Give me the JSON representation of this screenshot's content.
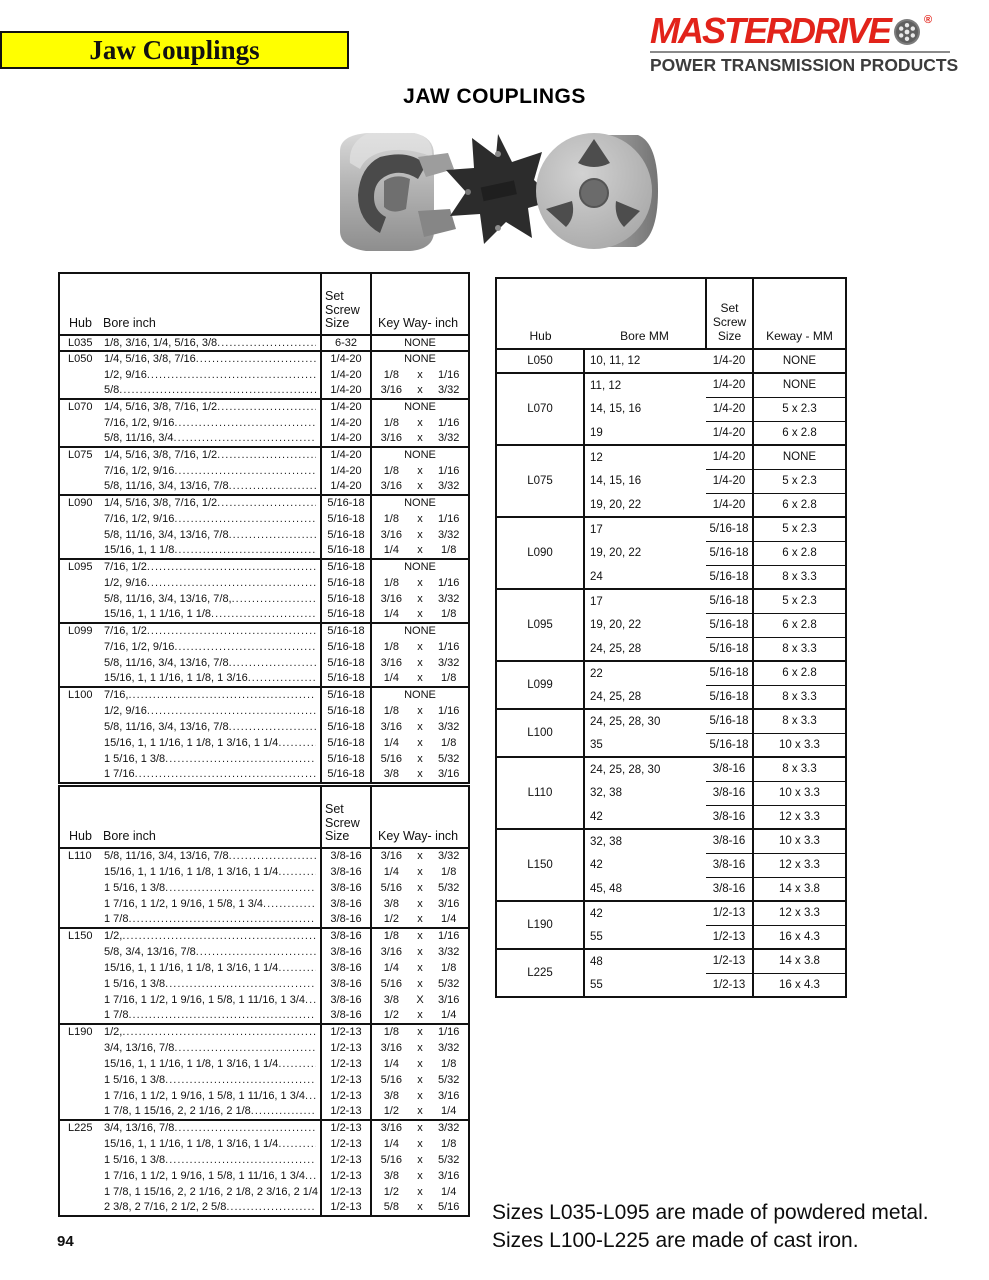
{
  "banner": {
    "title": "Jaw Couplings",
    "bg_color": "#ffff00"
  },
  "logo": {
    "brand": "MASTERDRIVE",
    "registered": "®",
    "tagline": "POWER TRANSMISSION PRODUCTS",
    "brand_color": "#e2231a",
    "tagline_color": "#3c3c3c"
  },
  "heading": "JAW COUPLINGS",
  "inch_header": {
    "hub": "Hub",
    "bore": "Bore inch",
    "screw": "Set Screw Size",
    "keyway": "Key Way- inch"
  },
  "inch_tables": [
    {
      "groups": [
        {
          "hub": "L035",
          "rows": [
            {
              "bore": "1/8, 3/16, 1/4, 5/16, 3/8",
              "screw": "6-32",
              "key": "NONE"
            }
          ]
        },
        {
          "hub": "L050",
          "rows": [
            {
              "bore": "1/4, 5/16, 3/8, 7/16",
              "screw": "1/4-20",
              "key": "NONE"
            },
            {
              "bore": "1/2, 9/16",
              "screw": "1/4-20",
              "key": "1/8 x 1/16"
            },
            {
              "bore": "5/8",
              "screw": "1/4-20",
              "key": "3/16 x 3/32"
            }
          ]
        },
        {
          "hub": "L070",
          "rows": [
            {
              "bore": "1/4, 5/16, 3/8, 7/16, 1/2",
              "screw": "1/4-20",
              "key": "NONE"
            },
            {
              "bore": "7/16, 1/2, 9/16",
              "screw": "1/4-20",
              "key": "1/8 x 1/16"
            },
            {
              "bore": "5/8, 11/16, 3/4",
              "screw": "1/4-20",
              "key": "3/16 x 3/32"
            }
          ]
        },
        {
          "hub": "L075",
          "rows": [
            {
              "bore": "1/4, 5/16, 3/8, 7/16, 1/2",
              "screw": "1/4-20",
              "key": "NONE"
            },
            {
              "bore": "7/16, 1/2, 9/16",
              "screw": "1/4-20",
              "key": "1/8 x 1/16"
            },
            {
              "bore": "5/8, 11/16, 3/4, 13/16, 7/8",
              "screw": "1/4-20",
              "key": "3/16 x 3/32"
            }
          ]
        },
        {
          "hub": "L090",
          "rows": [
            {
              "bore": "1/4, 5/16, 3/8, 7/16, 1/2",
              "screw": "5/16-18",
              "key": "NONE"
            },
            {
              "bore": "7/16, 1/2, 9/16",
              "screw": "5/16-18",
              "key": "1/8 x 1/16"
            },
            {
              "bore": "5/8, 11/16, 3/4, 13/16, 7/8",
              "screw": "5/16-18",
              "key": "3/16 x 3/32"
            },
            {
              "bore": "15/16, 1, 1 1/8",
              "screw": "5/16-18",
              "key": "1/4 x 1/8"
            }
          ]
        },
        {
          "hub": "L095",
          "rows": [
            {
              "bore": "7/16, 1/2",
              "screw": "5/16-18",
              "key": "NONE"
            },
            {
              "bore": "1/2, 9/16",
              "screw": "5/16-18",
              "key": "1/8 x 1/16"
            },
            {
              "bore": "5/8, 11/16, 3/4, 13/16, 7/8,",
              "screw": "5/16-18",
              "key": "3/16 x 3/32"
            },
            {
              "bore": "15/16, 1, 1 1/16, 1 1/8",
              "screw": "5/16-18",
              "key": "1/4 x 1/8"
            }
          ]
        },
        {
          "hub": "L099",
          "rows": [
            {
              "bore": "7/16, 1/2",
              "screw": "5/16-18",
              "key": "NONE"
            },
            {
              "bore": "7/16, 1/2, 9/16",
              "screw": "5/16-18",
              "key": "1/8 x 1/16"
            },
            {
              "bore": "5/8, 11/16, 3/4, 13/16, 7/8",
              "screw": "5/16-18",
              "key": "3/16 x 3/32"
            },
            {
              "bore": "15/16, 1, 1 1/16, 1 1/8, 1 3/16",
              "screw": "5/16-18",
              "key": "1/4 x 1/8"
            }
          ]
        },
        {
          "hub": "L100",
          "rows": [
            {
              "bore": "7/16,",
              "screw": "5/16-18",
              "key": "NONE"
            },
            {
              "bore": "1/2, 9/16",
              "screw": "5/16-18",
              "key": "1/8 x 1/16"
            },
            {
              "bore": "5/8, 11/16, 3/4, 13/16, 7/8",
              "screw": "5/16-18",
              "key": "3/16 x 3/32"
            },
            {
              "bore": "15/16, 1, 1 1/16, 1 1/8, 1 3/16, 1 1/4",
              "screw": "5/16-18",
              "key": "1/4 x 1/8"
            },
            {
              "bore": "1 5/16, 1 3/8",
              "screw": "5/16-18",
              "key": "5/16 x 5/32"
            },
            {
              "bore": "1 7/16",
              "screw": "5/16-18",
              "key": "3/8 x 3/16"
            }
          ]
        }
      ]
    },
    {
      "groups": [
        {
          "hub": "L110",
          "rows": [
            {
              "bore": "5/8, 11/16, 3/4, 13/16, 7/8",
              "screw": "3/8-16",
              "key": "3/16 x 3/32"
            },
            {
              "bore": "15/16, 1, 1 1/16, 1 1/8, 1 3/16, 1 1/4",
              "screw": "3/8-16",
              "key": "1/4 x 1/8"
            },
            {
              "bore": "1 5/16, 1 3/8",
              "screw": "3/8-16",
              "key": "5/16 x 5/32"
            },
            {
              "bore": "1 7/16, 1 1/2, 1 9/16, 1 5/8, 1 3/4",
              "screw": "3/8-16",
              "key": "3/8 x 3/16"
            },
            {
              "bore": "1 7/8",
              "screw": "3/8-16",
              "key": "1/2 x 1/4"
            }
          ]
        },
        {
          "hub": "L150",
          "rows": [
            {
              "bore": "1/2,",
              "screw": "3/8-16",
              "key": "1/8 x 1/16"
            },
            {
              "bore": "5/8, 3/4, 13/16, 7/8",
              "screw": "3/8-16",
              "key": "3/16 x 3/32"
            },
            {
              "bore": "15/16, 1, 1 1/16, 1 1/8, 1 3/16, 1 1/4",
              "screw": "3/8-16",
              "key": "1/4 x 1/8"
            },
            {
              "bore": "1 5/16, 1 3/8",
              "screw": "3/8-16",
              "key": "5/16 x 5/32"
            },
            {
              "bore": "1 7/16, 1 1/2, 1 9/16, 1 5/8, 1 11/16, 1 3/4",
              "screw": "3/8-16",
              "key": "3/8 X 3/16"
            },
            {
              "bore": "1 7/8",
              "screw": "3/8-16",
              "key": "1/2 x 1/4"
            }
          ]
        },
        {
          "hub": "L190",
          "rows": [
            {
              "bore": "1/2,",
              "screw": "1/2-13",
              "key": "1/8 x 1/16"
            },
            {
              "bore": "3/4, 13/16, 7/8",
              "screw": "1/2-13",
              "key": "3/16 x 3/32"
            },
            {
              "bore": "15/16, 1, 1 1/16, 1 1/8, 1 3/16, 1 1/4",
              "screw": "1/2-13",
              "key": "1/4 x 1/8"
            },
            {
              "bore": "1 5/16, 1 3/8",
              "screw": "1/2-13",
              "key": "5/16 x 5/32"
            },
            {
              "bore": "1 7/16, 1 1/2, 1 9/16, 1 5/8, 1 11/16, 1 3/4",
              "screw": "1/2-13",
              "key": "3/8 x 3/16"
            },
            {
              "bore": "1 7/8, 1 15/16, 2, 2 1/16, 2 1/8",
              "screw": "1/2-13",
              "key": "1/2 x 1/4"
            }
          ]
        },
        {
          "hub": "L225",
          "rows": [
            {
              "bore": "3/4, 13/16, 7/8",
              "screw": "1/2-13",
              "key": "3/16 x 3/32"
            },
            {
              "bore": "15/16, 1, 1 1/16, 1 1/8, 1 3/16, 1 1/4",
              "screw": "1/2-13",
              "key": "1/4 x 1/8"
            },
            {
              "bore": "1 5/16, 1 3/8",
              "screw": "1/2-13",
              "key": "5/16 x 5/32"
            },
            {
              "bore": "1 7/16, 1 1/2, 1 9/16, 1 5/8, 1 11/16, 1 3/4",
              "screw": "1/2-13",
              "key": "3/8 x 3/16"
            },
            {
              "bore": "1 7/8, 1 15/16, 2, 2 1/16, 2 1/8, 2 3/16, 2 1/4",
              "screw": "1/2-13",
              "key": "1/2 x 1/4"
            },
            {
              "bore": "2 3/8, 2 7/16, 2 1/2, 2 5/8",
              "screw": "1/2-13",
              "key": "5/8 x 5/16"
            }
          ]
        }
      ]
    }
  ],
  "mm_header": {
    "hub": "Hub",
    "bore": "Bore MM",
    "screw": "Set Screw Size",
    "keyway": "Keway - MM"
  },
  "mm_table": {
    "groups": [
      {
        "hub": "L050",
        "rows": [
          {
            "bore": "10, 11, 12",
            "screw": "1/4-20",
            "key": "NONE"
          }
        ]
      },
      {
        "hub": "L070",
        "rows": [
          {
            "bore": "11, 12",
            "screw": "1/4-20",
            "key": "NONE"
          },
          {
            "bore": "14, 15, 16",
            "screw": "1/4-20",
            "key": "5 x 2.3"
          },
          {
            "bore": "19",
            "screw": "1/4-20",
            "key": "6 x 2.8"
          }
        ]
      },
      {
        "hub": "L075",
        "rows": [
          {
            "bore": "12",
            "screw": "1/4-20",
            "key": "NONE"
          },
          {
            "bore": "14, 15, 16",
            "screw": "1/4-20",
            "key": "5 x 2.3"
          },
          {
            "bore": "19, 20, 22",
            "screw": "1/4-20",
            "key": "6 x 2.8"
          }
        ]
      },
      {
        "hub": "L090",
        "rows": [
          {
            "bore": "17",
            "screw": "5/16-18",
            "key": "5 x 2.3"
          },
          {
            "bore": "19, 20, 22",
            "screw": "5/16-18",
            "key": "6 x 2.8"
          },
          {
            "bore": "24",
            "screw": "5/16-18",
            "key": "8 x 3.3"
          }
        ]
      },
      {
        "hub": "L095",
        "rows": [
          {
            "bore": "17",
            "screw": "5/16-18",
            "key": "5 x 2.3"
          },
          {
            "bore": "19, 20, 22",
            "screw": "5/16-18",
            "key": "6 x 2.8"
          },
          {
            "bore": "24, 25, 28",
            "screw": "5/16-18",
            "key": "8 x 3.3"
          }
        ]
      },
      {
        "hub": "L099",
        "rows": [
          {
            "bore": "22",
            "screw": "5/16-18",
            "key": "6 x 2.8"
          },
          {
            "bore": "24, 25, 28",
            "screw": "5/16-18",
            "key": "8 x 3.3"
          }
        ]
      },
      {
        "hub": "L100",
        "rows": [
          {
            "bore": "24, 25, 28, 30",
            "screw": "5/16-18",
            "key": "8 x 3.3"
          },
          {
            "bore": "35",
            "screw": "5/16-18",
            "key": "10 x 3.3"
          }
        ]
      },
      {
        "hub": "L110",
        "rows": [
          {
            "bore": "24, 25, 28, 30",
            "screw": "3/8-16",
            "key": "8 x 3.3"
          },
          {
            "bore": "32, 38",
            "screw": "3/8-16",
            "key": "10 x 3.3"
          },
          {
            "bore": "42",
            "screw": "3/8-16",
            "key": "12 x 3.3"
          }
        ]
      },
      {
        "hub": "L150",
        "rows": [
          {
            "bore": "32, 38",
            "screw": "3/8-16",
            "key": "10 x 3.3"
          },
          {
            "bore": "42",
            "screw": "3/8-16",
            "key": "12 x 3.3"
          },
          {
            "bore": "45, 48",
            "screw": "3/8-16",
            "key": "14 x 3.8"
          }
        ]
      },
      {
        "hub": "L190",
        "rows": [
          {
            "bore": "42",
            "screw": "1/2-13",
            "key": "12 x 3.3"
          },
          {
            "bore": "55",
            "screw": "1/2-13",
            "key": "16 x 4.3"
          }
        ]
      },
      {
        "hub": "L225",
        "rows": [
          {
            "bore": "48",
            "screw": "1/2-13",
            "key": "14 x 3.8"
          },
          {
            "bore": "55",
            "screw": "1/2-13",
            "key": "16 x 4.3"
          }
        ]
      }
    ]
  },
  "footnotes": [
    "Sizes L035-L095 are made of powdered metal.",
    "Sizes L100-L225 are made of cast iron."
  ],
  "page_number": "94"
}
